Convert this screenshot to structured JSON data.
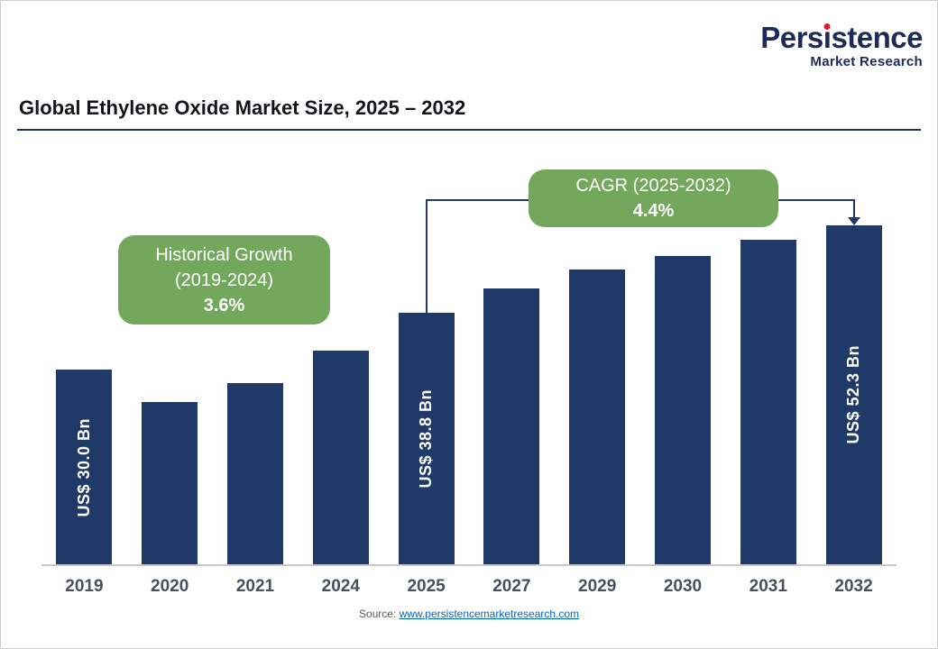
{
  "logo": {
    "brand_full": "Persistence",
    "brand_pre": "Pers",
    "brand_i": "ı",
    "brand_post": "stence",
    "subtitle": "Market Research",
    "brand_color": "#1e2a57",
    "dot_color": "#e01b2c"
  },
  "header": {
    "title": "Global Ethylene Oxide Market Size, 2025 – 2032"
  },
  "annotations": {
    "historical": {
      "line1": "Historical Growth",
      "line2": "(2019-2024)",
      "value": "3.6%"
    },
    "cagr": {
      "line1": "CAGR (2025-2032)",
      "value": "4.4%"
    },
    "callout_bg": "#72a75c",
    "connector_color": "#1f3a68"
  },
  "chart_data": {
    "type": "bar",
    "title": "Global Ethylene Oxide Market Size, 2025 – 2032",
    "unit": "US$ Bn",
    "categories": [
      "2019",
      "2020",
      "2021",
      "2024",
      "2025",
      "2027",
      "2029",
      "2030",
      "2031",
      "2032"
    ],
    "values": [
      30.0,
      25.0,
      28.0,
      33.0,
      38.8,
      42.5,
      45.5,
      47.5,
      50.0,
      52.3
    ],
    "bar_labels": [
      "US$ 30.0 Bn",
      "",
      "",
      "",
      "US$ 38.8 Bn",
      "",
      "",
      "",
      "",
      "US$ 52.3 Bn"
    ],
    "labeled_values": {
      "2019": "US$ 30.0 Bn",
      "2025": "US$ 38.8 Bn",
      "2032": "US$ 52.3 Bn"
    },
    "bar_color": "#1f3a68",
    "axis_label_color": "#494f60",
    "xlabel": "",
    "ylabel": "",
    "ylim": [
      0,
      55
    ],
    "grid": false,
    "legend": false,
    "historical_growth_2019_2024": "3.6%",
    "cagr_2025_2032": "4.4%"
  },
  "footer": {
    "source_label": "Source: ",
    "source_link_text": "www.persistencemarketresearch.com",
    "link_color": "#0563c1"
  }
}
